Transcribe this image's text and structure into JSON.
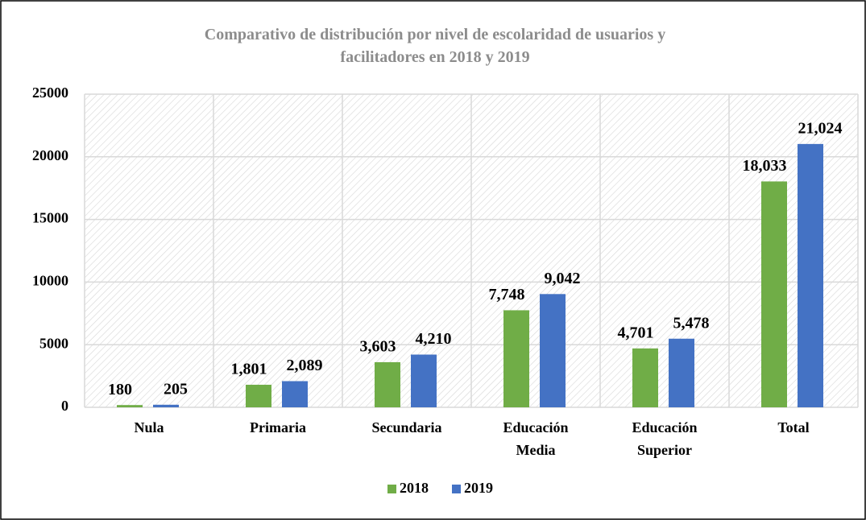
{
  "chart_data": {
    "type": "bar",
    "title": "Comparativo de distribución por nivel de escolaridad de usuarios y facilitadores en 2018 y 2019",
    "categories": [
      "Nula",
      "Primaria",
      "Secundaria",
      "Educación Media",
      "Educación Superior",
      "Total"
    ],
    "series": [
      {
        "name": "2018",
        "color": "#70ad47",
        "values": [
          180,
          1801,
          3603,
          7748,
          4701,
          18033
        ],
        "value_labels": [
          "180",
          "1,801",
          "3,603",
          "7,748",
          "4,701",
          "18,033"
        ]
      },
      {
        "name": "2019",
        "color": "#4472c4",
        "values": [
          205,
          2089,
          4210,
          9042,
          5478,
          21024
        ],
        "value_labels": [
          "205",
          "2,089",
          "4,210",
          "9,042",
          "5,478",
          "21,024"
        ]
      }
    ],
    "ylim": [
      0,
      25000
    ],
    "yticks": [
      0,
      5000,
      10000,
      15000,
      20000,
      25000
    ],
    "grid": true,
    "legend": "bottom"
  }
}
